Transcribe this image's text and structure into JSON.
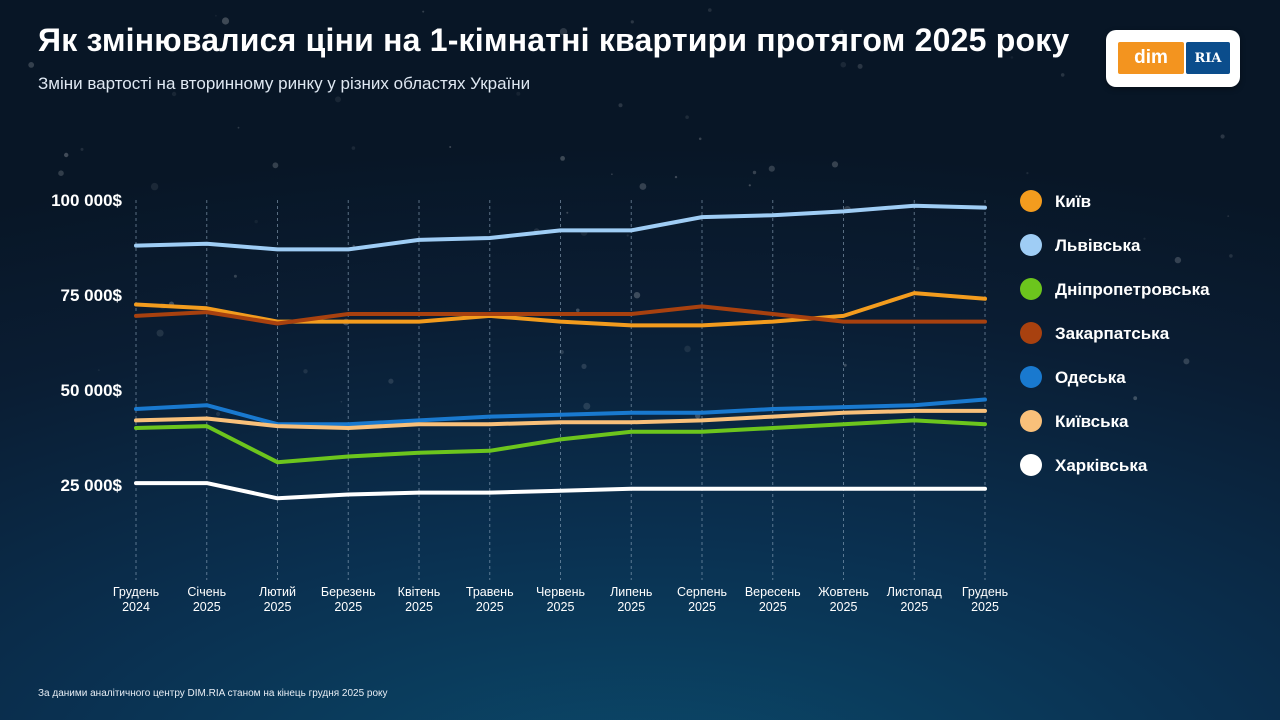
{
  "header": {
    "title": "Як змінювалися ціни на 1-кімнатні квартири протягом 2025 року",
    "subtitle": "Зміни вартості на вторинному ринку у різних областях України"
  },
  "logo": {
    "left": "dim",
    "right": "RIA"
  },
  "footnote": "За даними аналітичного центру DIM.RIA станом на кінець грудня 2025 року",
  "chart_data": {
    "type": "line",
    "title": "Як змінювалися ціни на 1-кімнатні квартири протягом 2025 року",
    "xlabel": "",
    "ylabel": "",
    "ylim": [
      25000,
      100000
    ],
    "yticks": [
      {
        "value": 100000,
        "label": "100 000$"
      },
      {
        "value": 75000,
        "label": "75 000$"
      },
      {
        "value": 50000,
        "label": "50 000$"
      },
      {
        "value": 25000,
        "label": "25 000$"
      }
    ],
    "categories": [
      [
        "Грудень",
        "2024"
      ],
      [
        "Січень",
        "2025"
      ],
      [
        "Лютий",
        "2025"
      ],
      [
        "Березень",
        "2025"
      ],
      [
        "Квітень",
        "2025"
      ],
      [
        "Травень",
        "2025"
      ],
      [
        "Червень",
        "2025"
      ],
      [
        "Липень",
        "2025"
      ],
      [
        "Серпень",
        "2025"
      ],
      [
        "Вересень",
        "2025"
      ],
      [
        "Жовтень",
        "2025"
      ],
      [
        "Листопад",
        "2025"
      ],
      [
        "Грудень",
        "2025"
      ]
    ],
    "legend_position": "right",
    "series": [
      {
        "name": "Київ",
        "color": "#f39c1e",
        "values": [
          72500,
          71500,
          68000,
          68000,
          68000,
          69500,
          68000,
          67000,
          67000,
          68000,
          69500,
          75500,
          74000
        ]
      },
      {
        "name": "Львівська",
        "color": "#9fcdf5",
        "values": [
          88000,
          88500,
          87000,
          87000,
          89500,
          90000,
          92000,
          92000,
          95500,
          96000,
          97000,
          98500,
          98000
        ]
      },
      {
        "name": "Дніпропетровська",
        "color": "#6cc51d",
        "values": [
          40000,
          40500,
          31000,
          32500,
          33500,
          34000,
          37000,
          39000,
          39000,
          40000,
          41000,
          42000,
          41000
        ]
      },
      {
        "name": "Закарпатська",
        "color": "#a8410f",
        "values": [
          69500,
          70500,
          67500,
          70000,
          70000,
          70000,
          70000,
          70000,
          72000,
          70000,
          68000,
          68000,
          68000
        ]
      },
      {
        "name": "Одеська",
        "color": "#1979cf",
        "values": [
          45000,
          46000,
          41000,
          41000,
          42000,
          43000,
          43500,
          44000,
          44000,
          45000,
          45500,
          46000,
          47500
        ]
      },
      {
        "name": "Київська",
        "color": "#f9c07a",
        "values": [
          42000,
          42500,
          40500,
          40000,
          41000,
          41000,
          41500,
          41500,
          42000,
          43000,
          44000,
          44500,
          44500
        ]
      },
      {
        "name": "Харківська",
        "color": "#ffffff",
        "values": [
          25500,
          25500,
          21500,
          22500,
          23000,
          23000,
          23500,
          24000,
          24000,
          24000,
          24000,
          24000,
          24000
        ]
      }
    ]
  }
}
